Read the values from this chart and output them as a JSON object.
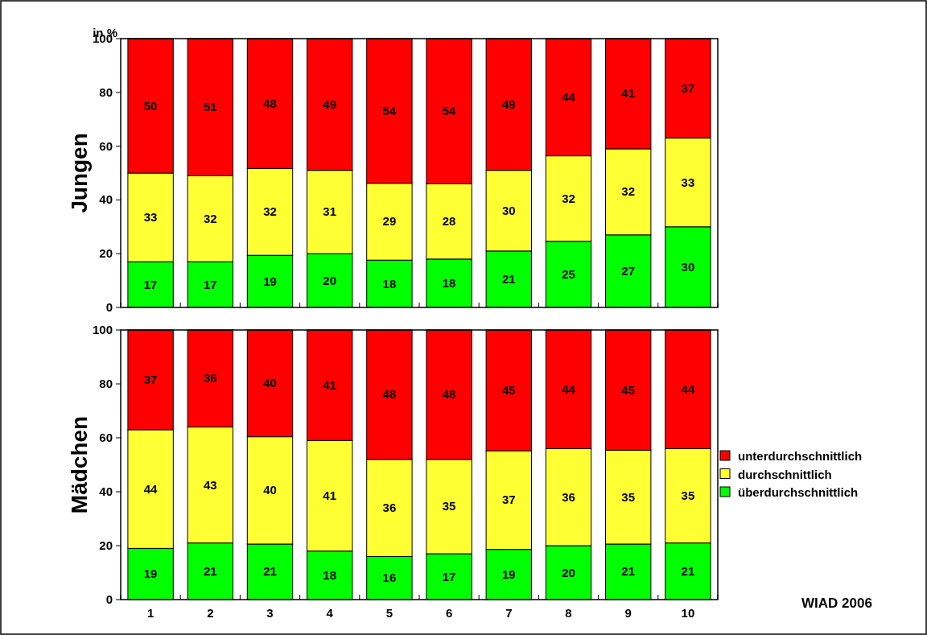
{
  "chart_data": [
    {
      "type": "bar",
      "stacked": true,
      "ylabel": "Jungen",
      "annotations": [
        "in %"
      ],
      "categories": [
        null,
        null,
        null,
        null,
        null,
        null,
        null,
        null,
        null,
        null
      ],
      "ylim": [
        0,
        100
      ],
      "yticks": [
        0,
        20,
        40,
        60,
        80,
        100
      ],
      "tick_labels": "y",
      "series": [
        {
          "color": "#00ff00",
          "values": [
            17,
            17,
            19.4,
            20,
            17.6,
            18,
            21,
            24.6,
            27,
            30
          ],
          "value_labels": [
            "17",
            "17",
            "19",
            "20",
            "18",
            "18",
            "21",
            "25",
            "27",
            "30"
          ]
        },
        {
          "color": "#ffff33",
          "values": [
            33,
            32,
            32.3,
            31,
            28.6,
            28,
            30,
            31.8,
            32,
            33
          ],
          "value_labels": [
            "33",
            "32",
            "32",
            "31",
            "29",
            "28",
            "30",
            "32",
            "32",
            "33"
          ]
        },
        {
          "color": "#ff0000",
          "values": [
            50,
            51,
            48.3,
            49,
            53.8,
            54,
            49,
            43.6,
            41,
            37
          ],
          "value_labels": [
            "50",
            "51",
            "48",
            "49",
            "54",
            "54",
            "49",
            "44",
            "41",
            "37"
          ]
        }
      ]
    },
    {
      "type": "bar",
      "stacked": true,
      "ylabel": "Mädchen",
      "annotations": [
        "WIAD 2006"
      ],
      "categories": [
        "1",
        "2",
        "3",
        "4",
        "5",
        "6",
        "7",
        "8",
        "9",
        "10"
      ],
      "ylim": [
        0,
        100
      ],
      "yticks": [
        0,
        20,
        40,
        60,
        80,
        100
      ],
      "legend": "right",
      "series": [
        {
          "name": "überdurchschnittlich",
          "color": "#00ff00",
          "values": [
            19,
            21,
            20.6,
            18,
            16,
            17,
            18.6,
            20,
            20.6,
            21
          ],
          "value_labels": [
            "19",
            "21",
            "21",
            "18",
            "16",
            "17",
            "19",
            "20",
            "21",
            "21"
          ]
        },
        {
          "name": "durchschnittlich",
          "color": "#ffff33",
          "values": [
            44,
            43,
            39.8,
            41,
            36,
            35,
            36.6,
            36,
            34.8,
            35
          ],
          "value_labels": [
            "44",
            "43",
            "40",
            "41",
            "36",
            "35",
            "37",
            "36",
            "35",
            "35"
          ]
        },
        {
          "name": "unterdurchschnittlich",
          "color": "#ff0000",
          "values": [
            37,
            36,
            39.6,
            41,
            48,
            48,
            44.8,
            44,
            44.6,
            44
          ],
          "value_labels": [
            "37",
            "36",
            "40",
            "41",
            "48",
            "48",
            "45",
            "44",
            "45",
            "44"
          ]
        }
      ]
    }
  ]
}
